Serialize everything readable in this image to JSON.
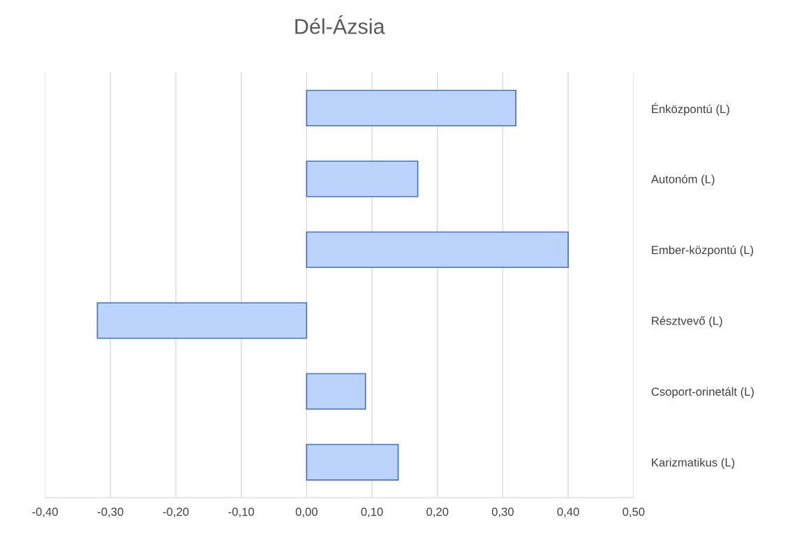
{
  "chart_data": {
    "type": "bar",
    "orientation": "horizontal",
    "title": "Dél-Ázsia",
    "categories": [
      "Énközpontú (L)",
      "Autonóm (L)",
      "Ember-központú (L)",
      "Résztvevő (L)",
      "Csoport-orinetált (L)",
      "Karizmatikus (L)"
    ],
    "values": [
      0.32,
      0.17,
      0.4,
      -0.32,
      0.09,
      0.14
    ],
    "color": "#bcd3fb",
    "xlim": [
      -0.4,
      0.5
    ],
    "xticks": [
      {
        "value": -0.4,
        "label": "-0,40"
      },
      {
        "value": -0.3,
        "label": "-0,30"
      },
      {
        "value": -0.2,
        "label": "-0,20"
      },
      {
        "value": -0.1,
        "label": "-0,10"
      },
      {
        "value": 0,
        "label": "0,00"
      },
      {
        "value": 0.1,
        "label": "0,10"
      },
      {
        "value": 0.2,
        "label": "0,20"
      },
      {
        "value": 0.3,
        "label": "0,30"
      },
      {
        "value": 0.4,
        "label": "0,40"
      },
      {
        "value": 0.5,
        "label": "0,50"
      }
    ],
    "grid": "x"
  }
}
